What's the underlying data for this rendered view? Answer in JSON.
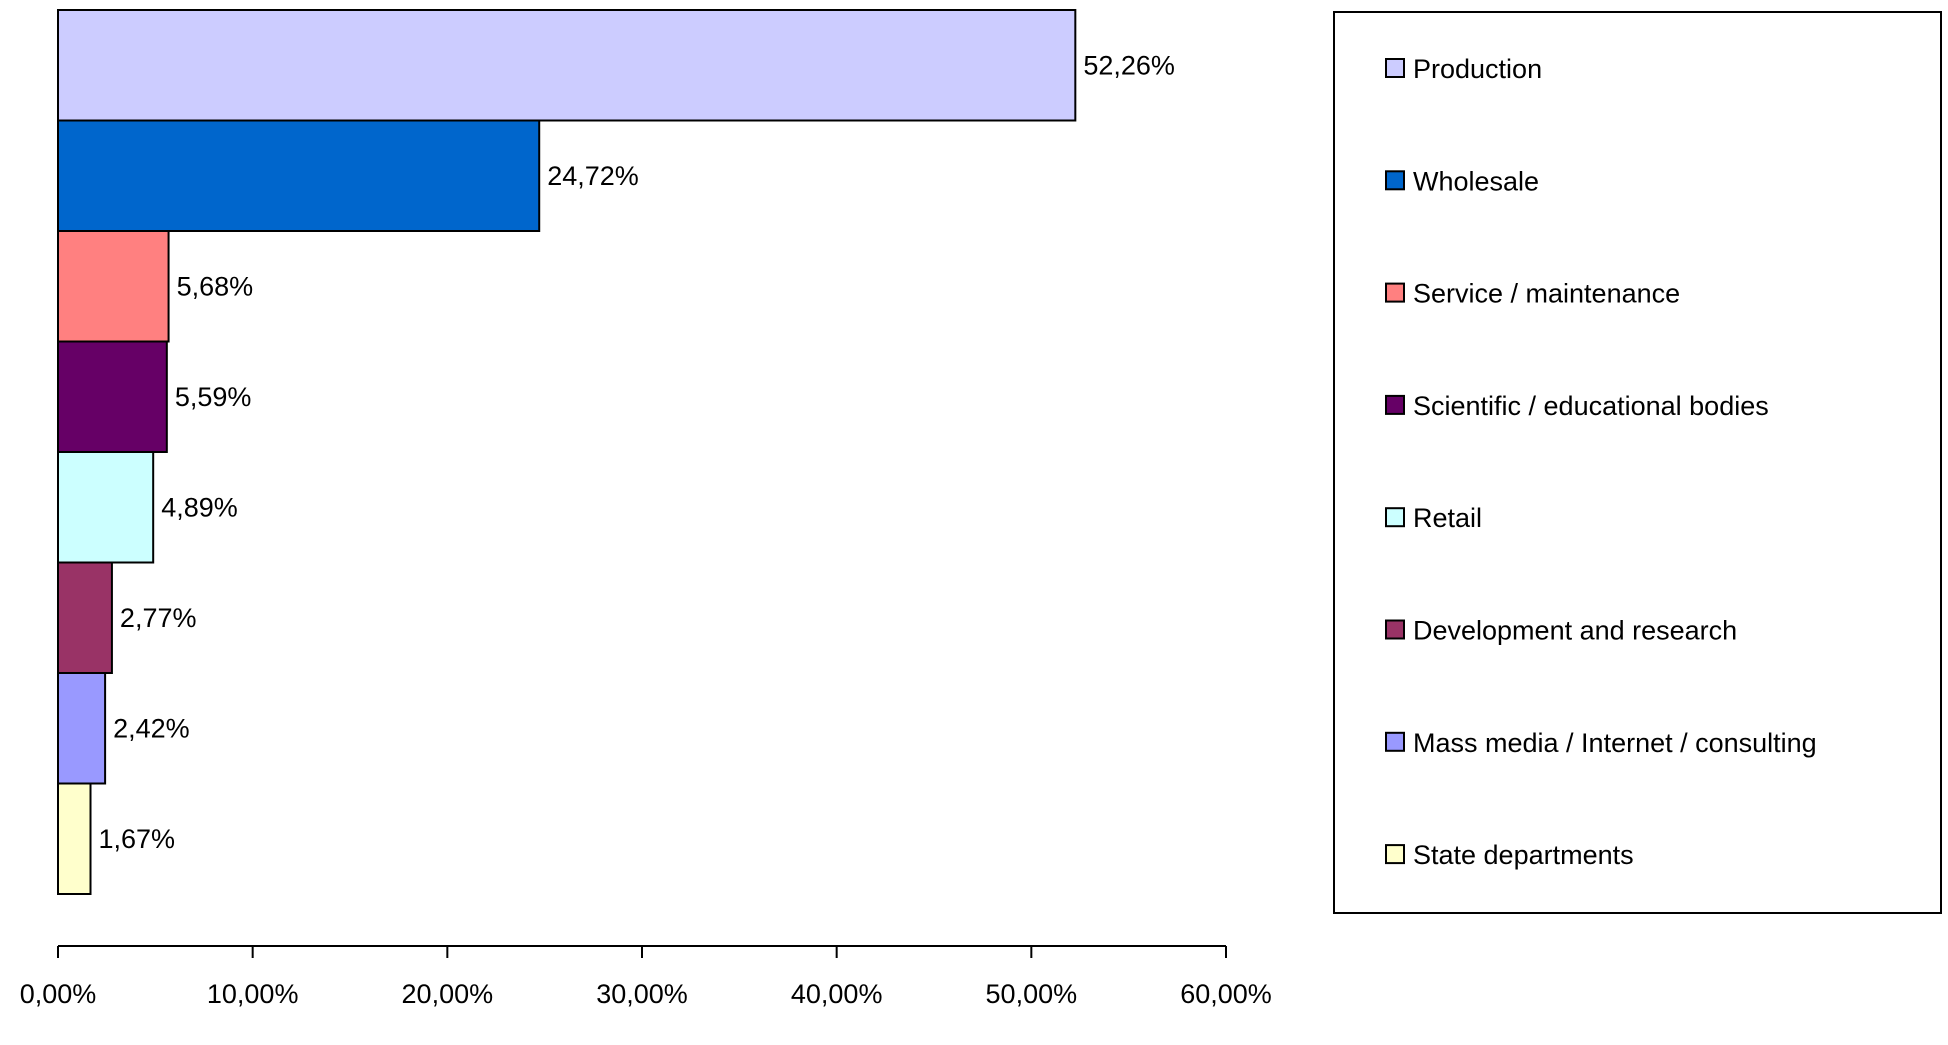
{
  "chart_data": {
    "type": "bar",
    "orientation": "horizontal",
    "categories": [
      "Production",
      "Wholesale",
      "Service / maintenance",
      "Scientific / educational bodies",
      "Retail",
      "Development and research",
      "Mass media / Internet / consulting",
      "State departments"
    ],
    "values": [
      52.26,
      24.72,
      5.68,
      5.59,
      4.89,
      2.77,
      2.42,
      1.67
    ],
    "value_labels": [
      "52,26%",
      "24,72%",
      "5,68%",
      "5,59%",
      "4,89%",
      "2,77%",
      "2,42%",
      "1,67%"
    ],
    "colors": [
      "#ccccff",
      "#0066cc",
      "#ff8080",
      "#660066",
      "#ccffff",
      "#993366",
      "#9999ff",
      "#ffffcc"
    ],
    "xlim": [
      0,
      60
    ],
    "xticks": [
      0,
      10,
      20,
      30,
      40,
      50,
      60
    ],
    "xtick_labels": [
      "0,00%",
      "10,00%",
      "20,00%",
      "30,00%",
      "40,00%",
      "50,00%",
      "60,00%"
    ],
    "title": "",
    "xlabel": "",
    "ylabel": "",
    "grid": false,
    "legend_position": "right"
  }
}
